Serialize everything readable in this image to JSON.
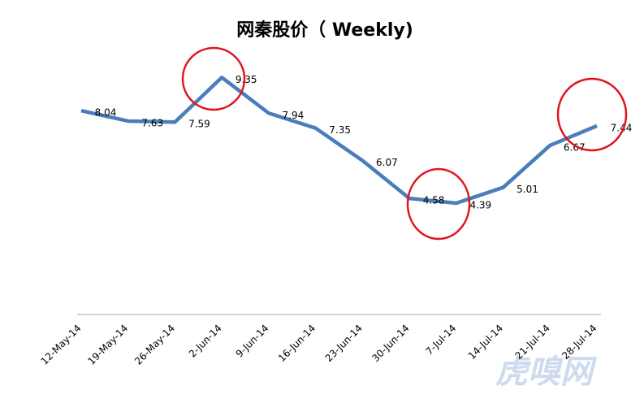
{
  "chart_data": {
    "type": "line",
    "title": "网秦股价（ Weekly)",
    "watermark": "虎嗅网",
    "categories": [
      "12-May-14",
      "19-May-14",
      "26-May-14",
      "2-Jun-14",
      "9-Jun-14",
      "16-Jun-14",
      "23-Jun-14",
      "30-Jun-14",
      "7-Jul-14",
      "14-Jul-14",
      "21-Jul-14",
      "28-Jul-14"
    ],
    "values": [
      8.04,
      7.63,
      7.59,
      9.35,
      7.94,
      7.35,
      6.07,
      4.58,
      4.39,
      5.01,
      6.67,
      7.44
    ],
    "color": "#4a7ebb",
    "ylim": [
      0,
      10
    ]
  }
}
